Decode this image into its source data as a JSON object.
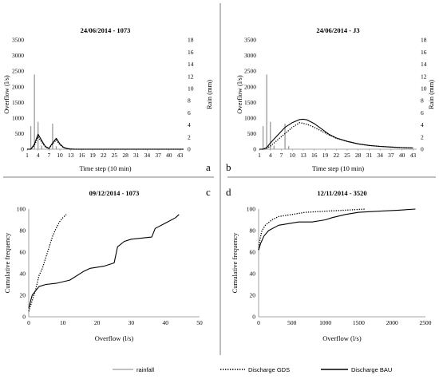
{
  "chart_data": [
    {
      "panel": "a",
      "type": "line",
      "title": "24/06/2014 - 1073",
      "xlabel": "Time step (10 min)",
      "ylabel": "Overflow (l/s)",
      "y2label": "Rain (mm)",
      "xticks": [
        "1",
        "4",
        "7",
        "10",
        "13",
        "16",
        "19",
        "22",
        "25",
        "28",
        "31",
        "34",
        "37",
        "40",
        "43"
      ],
      "yticks": [
        "0",
        "500",
        "1000",
        "1500",
        "2000",
        "2500",
        "3000",
        "3500"
      ],
      "y2ticks": [
        "0",
        "2",
        "4",
        "6",
        "8",
        "10",
        "12",
        "14",
        "16",
        "18"
      ],
      "xlim": [
        1,
        44
      ],
      "ylim": [
        0,
        3500
      ],
      "y2lim": [
        0,
        18
      ],
      "rainfall": {
        "x": [
          2,
          3,
          4,
          5,
          8,
          9
        ],
        "values": [
          3.8,
          12.3,
          4.5,
          0.6,
          4.2,
          0.5
        ]
      },
      "series": [
        {
          "name": "Discharge GDS",
          "style": "dotted",
          "x": [
            1,
            2,
            3,
            4,
            5,
            6,
            7,
            8,
            9,
            10,
            11,
            12,
            13,
            14,
            44
          ],
          "values": [
            0,
            0,
            120,
            400,
            230,
            70,
            20,
            170,
            300,
            140,
            50,
            15,
            5,
            0,
            0
          ]
        },
        {
          "name": "Discharge BAU",
          "style": "solid",
          "x": [
            1,
            2,
            3,
            4,
            5,
            6,
            7,
            8,
            9,
            10,
            11,
            12,
            13,
            14,
            44
          ],
          "values": [
            0,
            0,
            160,
            480,
            280,
            90,
            25,
            200,
            350,
            170,
            60,
            20,
            5,
            0,
            0
          ]
        }
      ]
    },
    {
      "panel": "b",
      "type": "line",
      "title": "24/06/2014 - J3",
      "xlabel": "Time step (10 min)",
      "ylabel": "Overflow (l/s)",
      "y2label": "Rain (mm)",
      "xticks": [
        "1",
        "4",
        "7",
        "10",
        "13",
        "16",
        "19",
        "22",
        "25",
        "28",
        "31",
        "34",
        "37",
        "40",
        "43"
      ],
      "yticks": [
        "0",
        "500",
        "1000",
        "1500",
        "2000",
        "2500",
        "3000",
        "3500"
      ],
      "y2ticks": [
        "0",
        "2",
        "4",
        "6",
        "8",
        "10",
        "12",
        "14",
        "16",
        "18"
      ],
      "xlim": [
        1,
        44
      ],
      "ylim": [
        0,
        3500
      ],
      "y2lim": [
        0,
        18
      ],
      "rainfall": {
        "x": [
          2,
          3,
          4,
          5,
          8,
          9
        ],
        "values": [
          3.8,
          12.3,
          4.5,
          0.6,
          4.2,
          0.5
        ]
      },
      "series": [
        {
          "name": "Discharge GDS",
          "style": "dotted",
          "x": [
            1,
            2,
            3,
            4,
            6,
            8,
            10,
            12,
            14,
            16,
            18,
            20,
            22,
            25,
            28,
            31,
            34,
            37,
            40,
            43
          ],
          "values": [
            0,
            0,
            30,
            100,
            300,
            500,
            700,
            850,
            800,
            700,
            580,
            460,
            350,
            250,
            170,
            120,
            90,
            70,
            50,
            40
          ]
        },
        {
          "name": "Discharge BAU",
          "style": "solid",
          "x": [
            1,
            2,
            3,
            4,
            6,
            8,
            10,
            12,
            13,
            14,
            16,
            18,
            20,
            22,
            25,
            28,
            31,
            34,
            37,
            40,
            43
          ],
          "values": [
            0,
            0,
            50,
            200,
            450,
            700,
            850,
            950,
            960,
            940,
            820,
            650,
            480,
            360,
            250,
            170,
            120,
            90,
            70,
            50,
            40
          ]
        }
      ]
    },
    {
      "panel": "c",
      "type": "line",
      "title": "09/12/2014 - 1073",
      "xlabel": "Overflow (l/s)",
      "ylabel": "Cumulative frequency",
      "xticks": [
        "0",
        "10",
        "20",
        "30",
        "40",
        "50"
      ],
      "yticks": [
        "0",
        "20",
        "40",
        "60",
        "80",
        "100"
      ],
      "xlim": [
        0,
        50
      ],
      "ylim": [
        0,
        100
      ],
      "series": [
        {
          "name": "Discharge GDS",
          "style": "dotted",
          "x": [
            0,
            1,
            2,
            3,
            4,
            5,
            6,
            7,
            8,
            9,
            10,
            11
          ],
          "values": [
            5,
            15,
            25,
            38,
            45,
            55,
            65,
            75,
            82,
            88,
            92,
            95
          ]
        },
        {
          "name": "Discharge BAU",
          "style": "solid",
          "x": [
            0,
            1,
            3,
            5,
            8,
            12,
            16,
            18,
            22,
            25,
            26,
            28,
            30,
            33,
            36,
            37,
            40,
            43,
            44
          ],
          "values": [
            8,
            20,
            28,
            30,
            31,
            34,
            42,
            45,
            47,
            50,
            65,
            70,
            72,
            73,
            74,
            82,
            87,
            92,
            95
          ]
        }
      ]
    },
    {
      "panel": "d",
      "type": "line",
      "title": "12/11/2014 - 3520",
      "xlabel": "Overflow (l/s)",
      "ylabel": "Cumulative frequency",
      "xticks": [
        "0",
        "500",
        "1000",
        "1500",
        "2000",
        "2500"
      ],
      "yticks": [
        "0",
        "20",
        "40",
        "60",
        "80",
        "100"
      ],
      "xlim": [
        0,
        2500
      ],
      "ylim": [
        0,
        100
      ],
      "series": [
        {
          "name": "Discharge GDS",
          "style": "dotted",
          "x": [
            0,
            20,
            50,
            100,
            200,
            300,
            500,
            700,
            1000,
            1300,
            1600
          ],
          "values": [
            62,
            72,
            80,
            85,
            90,
            93,
            95,
            97,
            98,
            99,
            100
          ]
        },
        {
          "name": "Discharge BAU",
          "style": "solid",
          "x": [
            0,
            30,
            80,
            150,
            300,
            500,
            600,
            800,
            1000,
            1100,
            1300,
            1500,
            1800,
            2100,
            2350
          ],
          "values": [
            62,
            68,
            75,
            80,
            85,
            87,
            88,
            88,
            90,
            92,
            95,
            97,
            98,
            99,
            100
          ]
        }
      ]
    }
  ],
  "panel_labels": [
    "a",
    "b",
    "c",
    "d"
  ],
  "legend": [
    "rainfall",
    "Discharge GDS",
    "Discharge BAU"
  ]
}
